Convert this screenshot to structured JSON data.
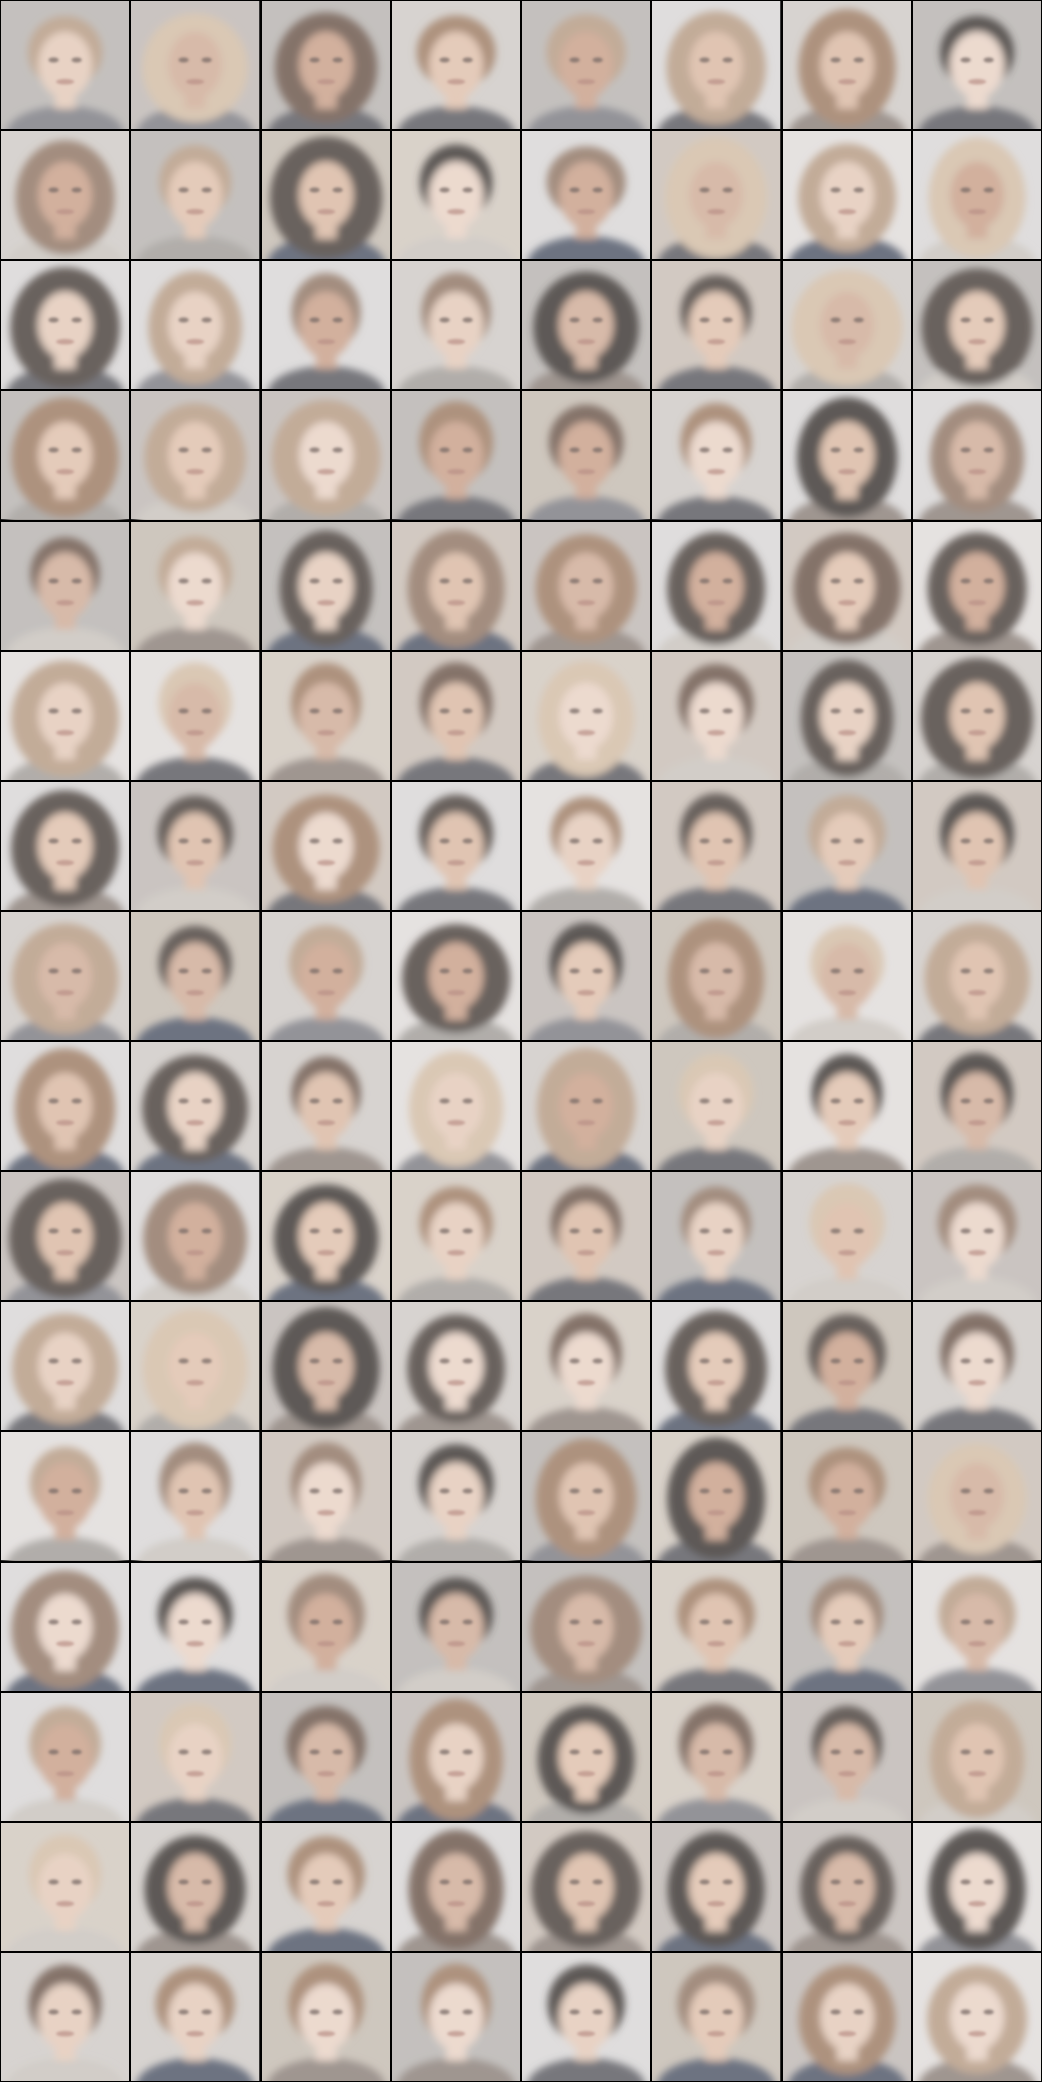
{
  "grid": {
    "columns": 8,
    "rows": 16,
    "border_color": "#000000",
    "tile_content": "blurry-generated-face"
  },
  "palette": {
    "background_tones": [
      "#cfcac6",
      "#d8d6d6",
      "#c9beb5",
      "#b7b3b0",
      "#e0dcda",
      "#c4bbb0",
      "#d1c8be",
      "#bfb8b4"
    ],
    "skin_tones": [
      "#e3c9b8",
      "#d9b8a2",
      "#cfab96",
      "#e8d2c4",
      "#c89f88",
      "#dfc0ab"
    ],
    "hair_tones": [
      "#4a3f3b",
      "#6b5549",
      "#8f7563",
      "#b59a82",
      "#d2bca4",
      "#3a3432",
      "#9c7a62"
    ],
    "shirt_tones": [
      "#5a5a60",
      "#7b7b82",
      "#a09c98",
      "#c8c2bc",
      "#4e5566",
      "#8a7f78"
    ]
  }
}
